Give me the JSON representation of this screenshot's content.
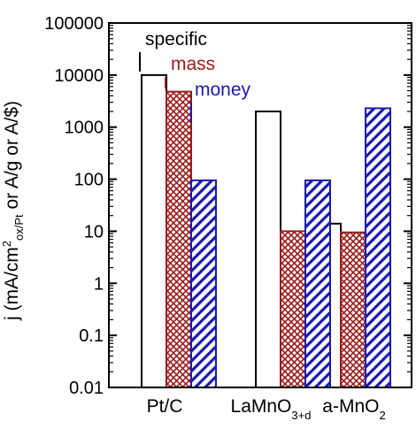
{
  "chart_data": {
    "type": "bar",
    "yscale": "log",
    "ylim": [
      0.01,
      100000
    ],
    "ylabel_main": "j (mA/cm",
    "ylabel_sup": "2",
    "ylabel_sub": "ox/Pt",
    "ylabel_tail": " or A/g or A/$)",
    "yticks": [
      "0.01",
      "0.1",
      "1",
      "10",
      "100",
      "1000",
      "10000",
      "100000"
    ],
    "categories": [
      {
        "main": "Pt/C",
        "sub": ""
      },
      {
        "main": "LaMnO",
        "sub": "3+d"
      },
      {
        "main": "a-MnO",
        "sub": "2"
      }
    ],
    "series": [
      {
        "name": "specific",
        "color": "#000000",
        "pattern": "none",
        "values": [
          10000,
          2000,
          14
        ]
      },
      {
        "name": "mass",
        "color": "#9b1b1b",
        "pattern": "crosshatch",
        "values": [
          4800,
          10,
          9.5
        ]
      },
      {
        "name": "money",
        "color": "#1a1ab0",
        "pattern": "diagonal",
        "values": [
          95,
          95,
          2300
        ]
      }
    ],
    "grid": false,
    "legend": "annotations"
  }
}
